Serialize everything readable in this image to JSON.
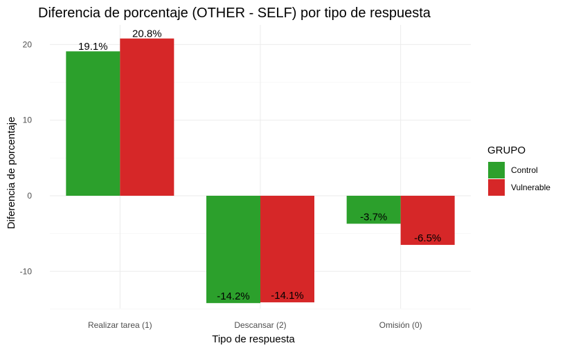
{
  "chart_data": {
    "type": "bar",
    "title": "Diferencia de porcentaje (OTHER - SELF) por tipo de respuesta",
    "xlabel": "Tipo de respuesta",
    "ylabel": "Diferencia de porcentaje",
    "categories": [
      "Realizar tarea (1)",
      "Descansar (2)",
      "Omisión (0)"
    ],
    "series": [
      {
        "name": "Control",
        "color": "#2ca02c",
        "values": [
          19.1,
          -14.2,
          -3.7
        ],
        "labels": [
          "19.1%",
          "-14.2%",
          "-3.7%"
        ]
      },
      {
        "name": "Vulnerable",
        "color": "#d62728",
        "values": [
          20.8,
          -14.1,
          -6.5
        ],
        "labels": [
          "20.8%",
          "-14.1%",
          "-6.5%"
        ]
      }
    ],
    "ylim": [
      -15,
      22
    ],
    "yticks": [
      -10,
      0,
      10,
      20
    ],
    "grid": true,
    "legend": {
      "title": "GRUPO",
      "placement": "right"
    }
  }
}
